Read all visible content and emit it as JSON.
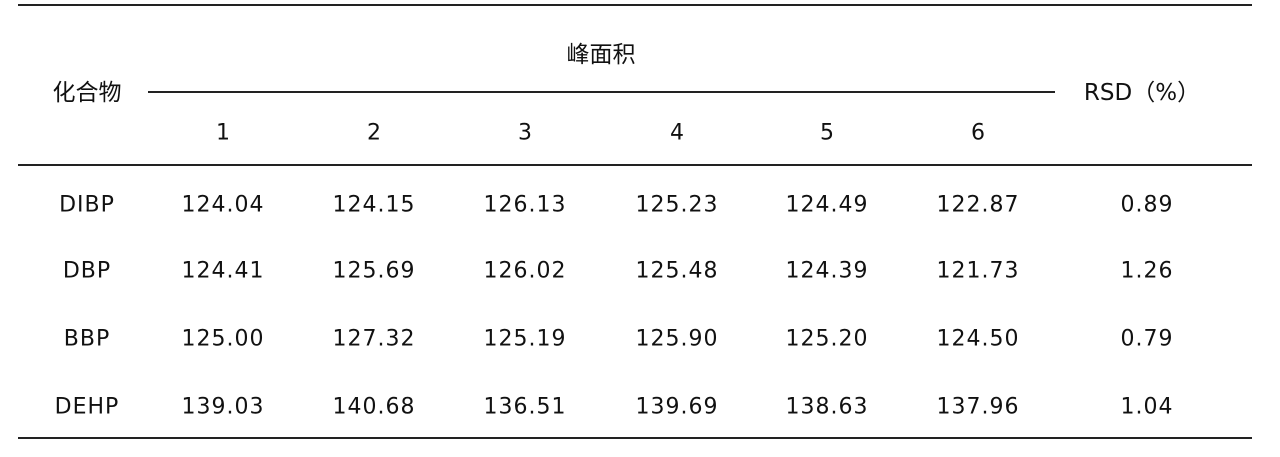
{
  "table": {
    "header": {
      "compound": "化合物",
      "peak_area": "峰面积",
      "rsd": "RSD（%）",
      "runs": [
        "1",
        "2",
        "3",
        "4",
        "5",
        "6"
      ]
    },
    "rows": [
      {
        "compound": "DIBP",
        "values": [
          "124.04",
          "124.15",
          "126.13",
          "125.23",
          "124.49",
          "122.87"
        ],
        "rsd": "0.89"
      },
      {
        "compound": "DBP",
        "values": [
          "124.41",
          "125.69",
          "126.02",
          "125.48",
          "124.39",
          "121.73"
        ],
        "rsd": "1.26"
      },
      {
        "compound": "BBP",
        "values": [
          "125.00",
          "127.32",
          "125.19",
          "125.90",
          "125.20",
          "124.50"
        ],
        "rsd": "0.79"
      },
      {
        "compound": "DEHP",
        "values": [
          "139.03",
          "140.68",
          "136.51",
          "139.69",
          "138.63",
          "137.96"
        ],
        "rsd": "1.04"
      }
    ]
  }
}
